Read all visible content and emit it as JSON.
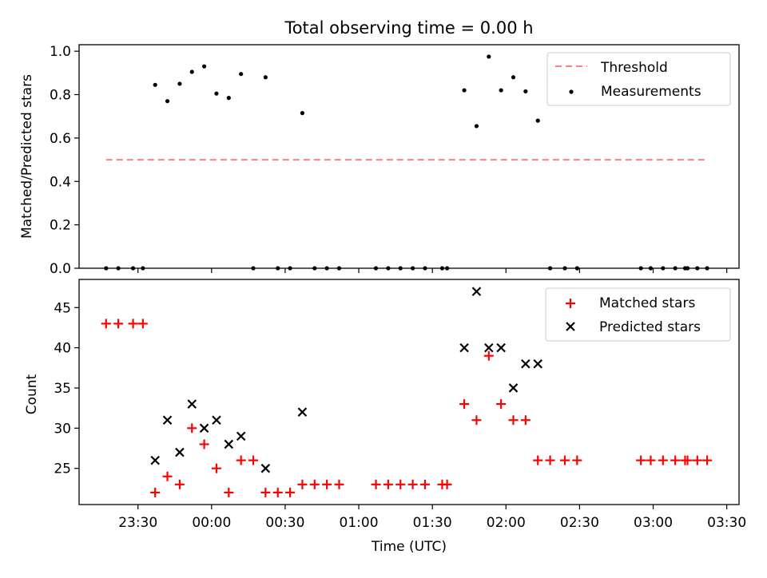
{
  "chart_data": [
    {
      "type": "scatter",
      "title": "Total observing time = 0.00 h",
      "ylabel": "Matched/Predicted stars",
      "xlabel": "",
      "ylim": [
        0,
        1.03
      ],
      "yticks": [
        "0.0",
        "0.2",
        "0.4",
        "0.6",
        "0.8",
        "1.0"
      ],
      "xticks_shown": false,
      "legend_position": "top-right",
      "grid": false,
      "threshold": {
        "name": "Threshold",
        "value": 0.5,
        "x_start": "23:17",
        "x_end": "03:22",
        "color": "#ff8080",
        "style": "dashed"
      },
      "series": [
        {
          "name": "Measurements",
          "color": "#000000",
          "marker": "dot",
          "points": [
            [
              "23:17",
              0
            ],
            [
              "23:22",
              0
            ],
            [
              "23:28",
              0
            ],
            [
              "23:32",
              0
            ],
            [
              "23:37",
              0.845
            ],
            [
              "23:42",
              0.77
            ],
            [
              "23:47",
              0.85
            ],
            [
              "23:52",
              0.905
            ],
            [
              "23:57",
              0.93
            ],
            [
              "00:02",
              0.805
            ],
            [
              "00:07",
              0.785
            ],
            [
              "00:12",
              0.895
            ],
            [
              "00:17",
              0
            ],
            [
              "00:22",
              0.88
            ],
            [
              "00:27",
              0
            ],
            [
              "00:32",
              0
            ],
            [
              "00:37",
              0.715
            ],
            [
              "00:42",
              0
            ],
            [
              "00:47",
              0
            ],
            [
              "00:52",
              0
            ],
            [
              "01:07",
              0
            ],
            [
              "01:12",
              0
            ],
            [
              "01:17",
              0
            ],
            [
              "01:22",
              0
            ],
            [
              "01:27",
              0
            ],
            [
              "01:34",
              0
            ],
            [
              "01:36",
              0
            ],
            [
              "01:43",
              0.82
            ],
            [
              "01:48",
              0.655
            ],
            [
              "01:53",
              0.975
            ],
            [
              "01:58",
              0.82
            ],
            [
              "02:03",
              0.88
            ],
            [
              "02:08",
              0.815
            ],
            [
              "02:13",
              0.68
            ],
            [
              "02:18",
              0
            ],
            [
              "02:24",
              0
            ],
            [
              "02:29",
              0
            ],
            [
              "02:55",
              0
            ],
            [
              "02:59",
              0
            ],
            [
              "03:04",
              0
            ],
            [
              "03:09",
              0
            ],
            [
              "03:13",
              0
            ],
            [
              "03:14",
              0
            ],
            [
              "03:18",
              0
            ],
            [
              "03:22",
              0
            ]
          ]
        }
      ]
    },
    {
      "type": "scatter",
      "title": "",
      "ylabel": "Count",
      "xlabel": "Time (UTC)",
      "ylim": [
        20.5,
        48.5
      ],
      "yticks": [
        "25",
        "30",
        "35",
        "40",
        "45"
      ],
      "xticks": [
        "23:30",
        "00:00",
        "00:30",
        "01:00",
        "01:30",
        "02:00",
        "02:30",
        "03:00",
        "03:30"
      ],
      "xlim": [
        "23:06",
        "03:35"
      ],
      "legend_position": "top-right",
      "grid": false,
      "series": [
        {
          "name": "Matched stars",
          "color": "#ff0000",
          "marker": "plus",
          "points": [
            [
              "23:17",
              43
            ],
            [
              "23:22",
              43
            ],
            [
              "23:28",
              43
            ],
            [
              "23:32",
              43
            ],
            [
              "23:37",
              22
            ],
            [
              "23:42",
              24
            ],
            [
              "23:47",
              23
            ],
            [
              "23:52",
              30
            ],
            [
              "23:57",
              28
            ],
            [
              "00:02",
              25
            ],
            [
              "00:07",
              22
            ],
            [
              "00:12",
              26
            ],
            [
              "00:17",
              26
            ],
            [
              "00:22",
              22
            ],
            [
              "00:27",
              22
            ],
            [
              "00:32",
              22
            ],
            [
              "00:37",
              23
            ],
            [
              "00:42",
              23
            ],
            [
              "00:47",
              23
            ],
            [
              "00:52",
              23
            ],
            [
              "01:07",
              23
            ],
            [
              "01:12",
              23
            ],
            [
              "01:17",
              23
            ],
            [
              "01:22",
              23
            ],
            [
              "01:27",
              23
            ],
            [
              "01:34",
              23
            ],
            [
              "01:36",
              23
            ],
            [
              "01:43",
              33
            ],
            [
              "01:48",
              31
            ],
            [
              "01:53",
              39
            ],
            [
              "01:58",
              33
            ],
            [
              "02:03",
              31
            ],
            [
              "02:08",
              31
            ],
            [
              "02:13",
              26
            ],
            [
              "02:18",
              26
            ],
            [
              "02:24",
              26
            ],
            [
              "02:29",
              26
            ],
            [
              "02:55",
              26
            ],
            [
              "02:59",
              26
            ],
            [
              "03:04",
              26
            ],
            [
              "03:09",
              26
            ],
            [
              "03:13",
              26
            ],
            [
              "03:14",
              26
            ],
            [
              "03:18",
              26
            ],
            [
              "03:22",
              26
            ]
          ]
        },
        {
          "name": "Predicted stars",
          "color": "#000000",
          "marker": "x",
          "points": [
            [
              "23:37",
              26
            ],
            [
              "23:42",
              31
            ],
            [
              "23:47",
              27
            ],
            [
              "23:52",
              33
            ],
            [
              "23:57",
              30
            ],
            [
              "00:02",
              31
            ],
            [
              "00:07",
              28
            ],
            [
              "00:12",
              29
            ],
            [
              "00:22",
              25
            ],
            [
              "00:37",
              32
            ],
            [
              "01:43",
              40
            ],
            [
              "01:48",
              47
            ],
            [
              "01:53",
              40
            ],
            [
              "01:58",
              40
            ],
            [
              "02:03",
              35
            ],
            [
              "02:08",
              38
            ],
            [
              "02:13",
              38
            ]
          ]
        }
      ]
    }
  ]
}
